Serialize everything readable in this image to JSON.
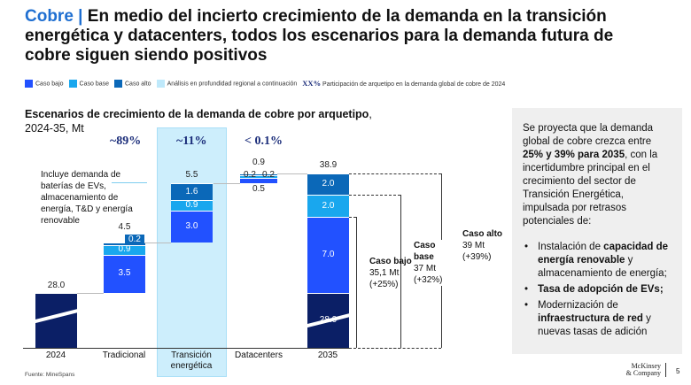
{
  "header": {
    "title_accent": "Cobre |",
    "title_rest": " En medio del incierto crecimiento de la demanda en la transición energética y datacenters, todos los escenarios para la demanda futura de cobre siguen siendo positivos"
  },
  "legend": {
    "items": [
      {
        "label": "Caso bajo",
        "color": "#2251ff"
      },
      {
        "label": "Caso base",
        "color": "#19a7ee"
      },
      {
        "label": "Caso alto",
        "color": "#0b68b8"
      },
      {
        "label": "Análisis en profundidad regional a continuación",
        "color": "#bfe9fb"
      }
    ],
    "xx": "XX%",
    "xx_label": "Participación de arquetipo en la demanda global de cobre de 2024"
  },
  "chart_data": {
    "type": "waterfall",
    "title": "Escenarios de crecimiento de la demanda de cobre por arquetipo",
    "subtitle": "2024-35, Mt",
    "categories": [
      "2024",
      "Tradicional",
      "Transición energética",
      "Datacenters",
      "2035"
    ],
    "shares": [
      "~89%",
      "~11%",
      "< 0.1%"
    ],
    "base_2024": 28.0,
    "increments": {
      "Caso bajo": [
        3.5,
        3.0,
        0.5
      ],
      "Caso base": [
        0.9,
        0.9,
        0.2
      ],
      "Caso alto": [
        0.2,
        1.6,
        0.2
      ]
    },
    "totals": {
      "Tradicional": "4.5",
      "Transición energética": "5.5",
      "Datacenters": "0.9",
      "2035": "38.9"
    },
    "end_2035": {
      "base": 28.0,
      "Caso bajo": 7.0,
      "Caso base": 2.0,
      "Caso alto": 2.0
    },
    "value_labels": {
      "2024": "28.0",
      "trad": [
        "3.5",
        "0.9",
        "0.2"
      ],
      "te": [
        "3.0",
        "0.9",
        "1.6"
      ],
      "dc": [
        "0.5",
        "0.2",
        "0.2"
      ],
      "y2035": [
        "28.0",
        "7.0",
        "2.0",
        "2.0"
      ]
    },
    "annotation": "Incluye demanda de baterías de EVs, almacenamiento de energía, T&D y energía renovable",
    "scenarios": [
      {
        "name": "Caso bajo",
        "value": "35,1 Mt",
        "change": "(+25%)"
      },
      {
        "name": "Caso base",
        "value": "37 Mt",
        "change": "(+32%)"
      },
      {
        "name": "Caso alto",
        "value": "39 Mt",
        "change": "(+39%)"
      }
    ],
    "colors": {
      "base": "#0b1f66",
      "bajo": "#2251ff",
      "base_case": "#19a7ee",
      "alto": "#0b68b8",
      "highlight": "#cdeefc"
    }
  },
  "panel": {
    "p1": "Se proyecta que la demanda global de cobre crezca entre ",
    "p1_bold": "25% y 39% para 2035",
    "p1_rest": ", con la incertidumbre principal en el crecimiento del sector de Transición Energética, impulsada por retrasos potenciales de:",
    "b1a": "Instalación de ",
    "b1b": "capacidad de energía renovable",
    "b1c": " y almacenamiento de energía;",
    "b2": "Tasa de adopción de EVs;",
    "b3a": "Modernización de ",
    "b3b": "infraestructura de red",
    "b3c": " y nuevas tasas de adición"
  },
  "footer": {
    "source": "Fuente: MineSpans",
    "logo": "McKinsey & Company",
    "page": "5"
  }
}
